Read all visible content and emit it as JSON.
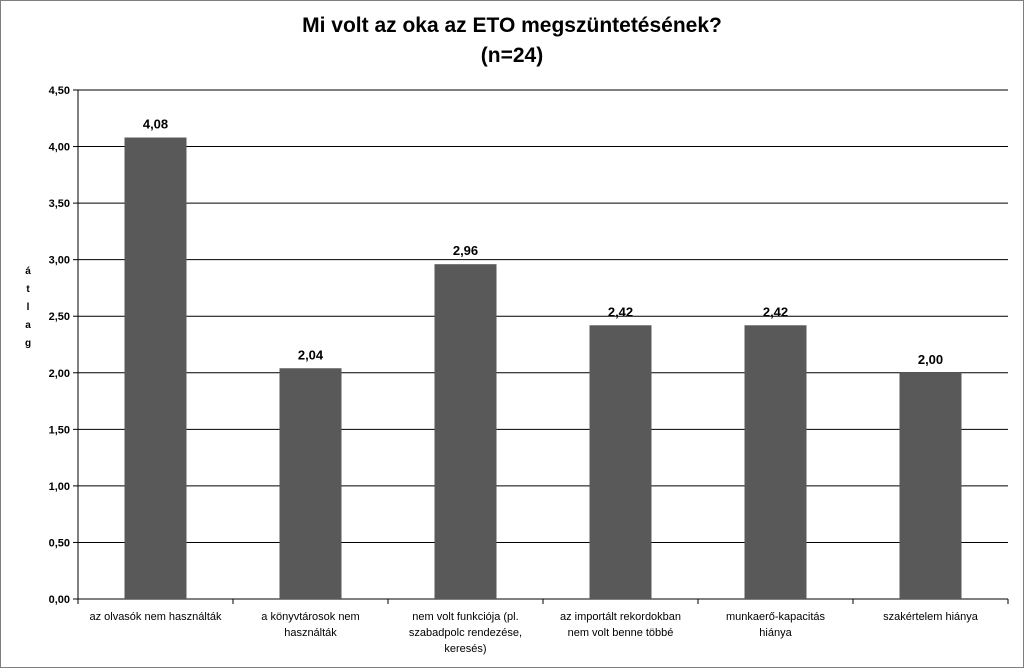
{
  "chart_data": {
    "type": "bar",
    "title": "Mi volt az oka az ETO megszüntetésének?",
    "subtitle": "(n=24)",
    "ylabel": "átlag",
    "xlabel": "",
    "categories": [
      "az olvasók nem használták",
      "a könyvtárosok nem\nhasználták",
      "nem volt funkciója (pl.\nszabadpolc rendezése,\nkeresés)",
      "az importált rekordokban\nnem volt benne többé",
      "munkaerő-kapacitás\nhiánya",
      "szakértelem hiánya"
    ],
    "values": [
      4.08,
      2.04,
      2.96,
      2.42,
      2.42,
      2.0
    ],
    "value_labels": [
      "4,08",
      "2,04",
      "2,96",
      "2,42",
      "2,42",
      "2,00"
    ],
    "ylim": [
      0,
      4.5
    ],
    "yticks": [
      0,
      0.5,
      1,
      1.5,
      2,
      2.5,
      3,
      3.5,
      4,
      4.5
    ],
    "ytick_labels": [
      "0,00",
      "0,50",
      "1,00",
      "1,50",
      "2,00",
      "2,50",
      "3,00",
      "3,50",
      "4,00",
      "4,50"
    ],
    "grid": true,
    "legend": false,
    "bar_color": "#595959",
    "grid_color": "#000000"
  }
}
